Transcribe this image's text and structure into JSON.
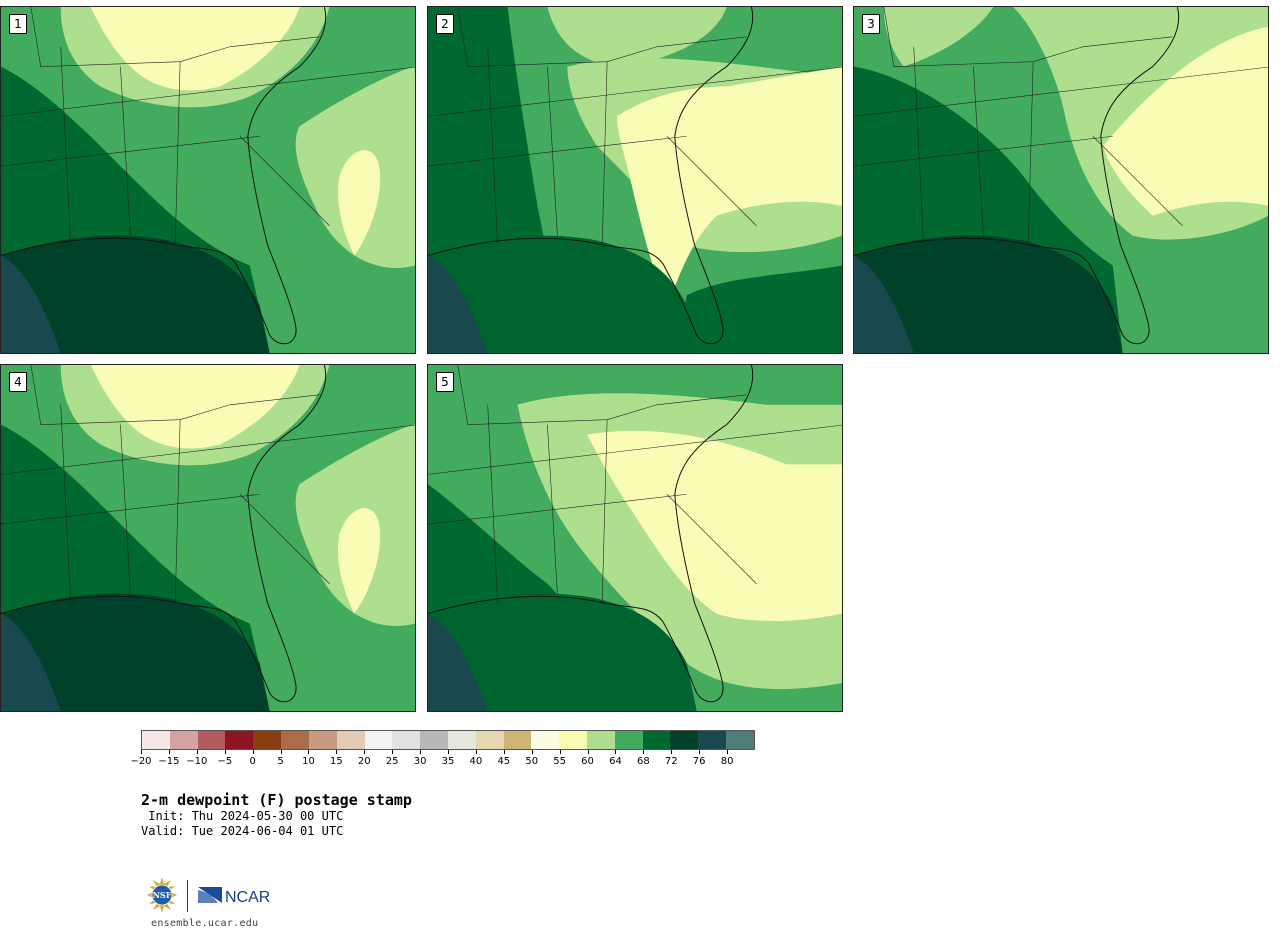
{
  "panels": [
    {
      "label": "1",
      "scheme": "humid",
      "gulf_color": "#00412a"
    },
    {
      "label": "2",
      "scheme": "mixed",
      "gulf_color": "#00642f"
    },
    {
      "label": "3",
      "scheme": "humid_e",
      "gulf_color": "#00412a"
    },
    {
      "label": "4",
      "scheme": "humid",
      "gulf_color": "#00412a"
    },
    {
      "label": "5",
      "scheme": "dry",
      "gulf_color": "#00642f"
    }
  ],
  "colorbar": {
    "colors": [
      "#f6e8e8",
      "#d5a3a5",
      "#b35a60",
      "#8e1422",
      "#8a3f12",
      "#ab6c4c",
      "#c89a82",
      "#e4c9b6",
      "#f3f3f1",
      "#e1e1e0",
      "#b8b8b8",
      "#e6e6dc",
      "#e6d7b0",
      "#d0b474",
      "#fdfde4",
      "#f9fcb4",
      "#addf8e",
      "#42ab5d",
      "#00692f",
      "#00412a",
      "#19484f",
      "#4f7c79"
    ],
    "tick_labels": [
      "−20",
      "−15",
      "−10",
      "−5",
      "0",
      "5",
      "10",
      "15",
      "20",
      "25",
      "30",
      "35",
      "40",
      "45",
      "50",
      "55",
      "60",
      "64",
      "68",
      "72",
      "76",
      "80"
    ]
  },
  "title": "2-m dewpoint (F) postage stamp",
  "init": " Init: Thu 2024-05-30 00 UTC",
  "valid": "Valid: Tue 2024-06-04 01 UTC",
  "logos": {
    "nsf": "NSF",
    "ncar": "NCAR"
  },
  "footer_url": "ensemble.ucar.edu"
}
